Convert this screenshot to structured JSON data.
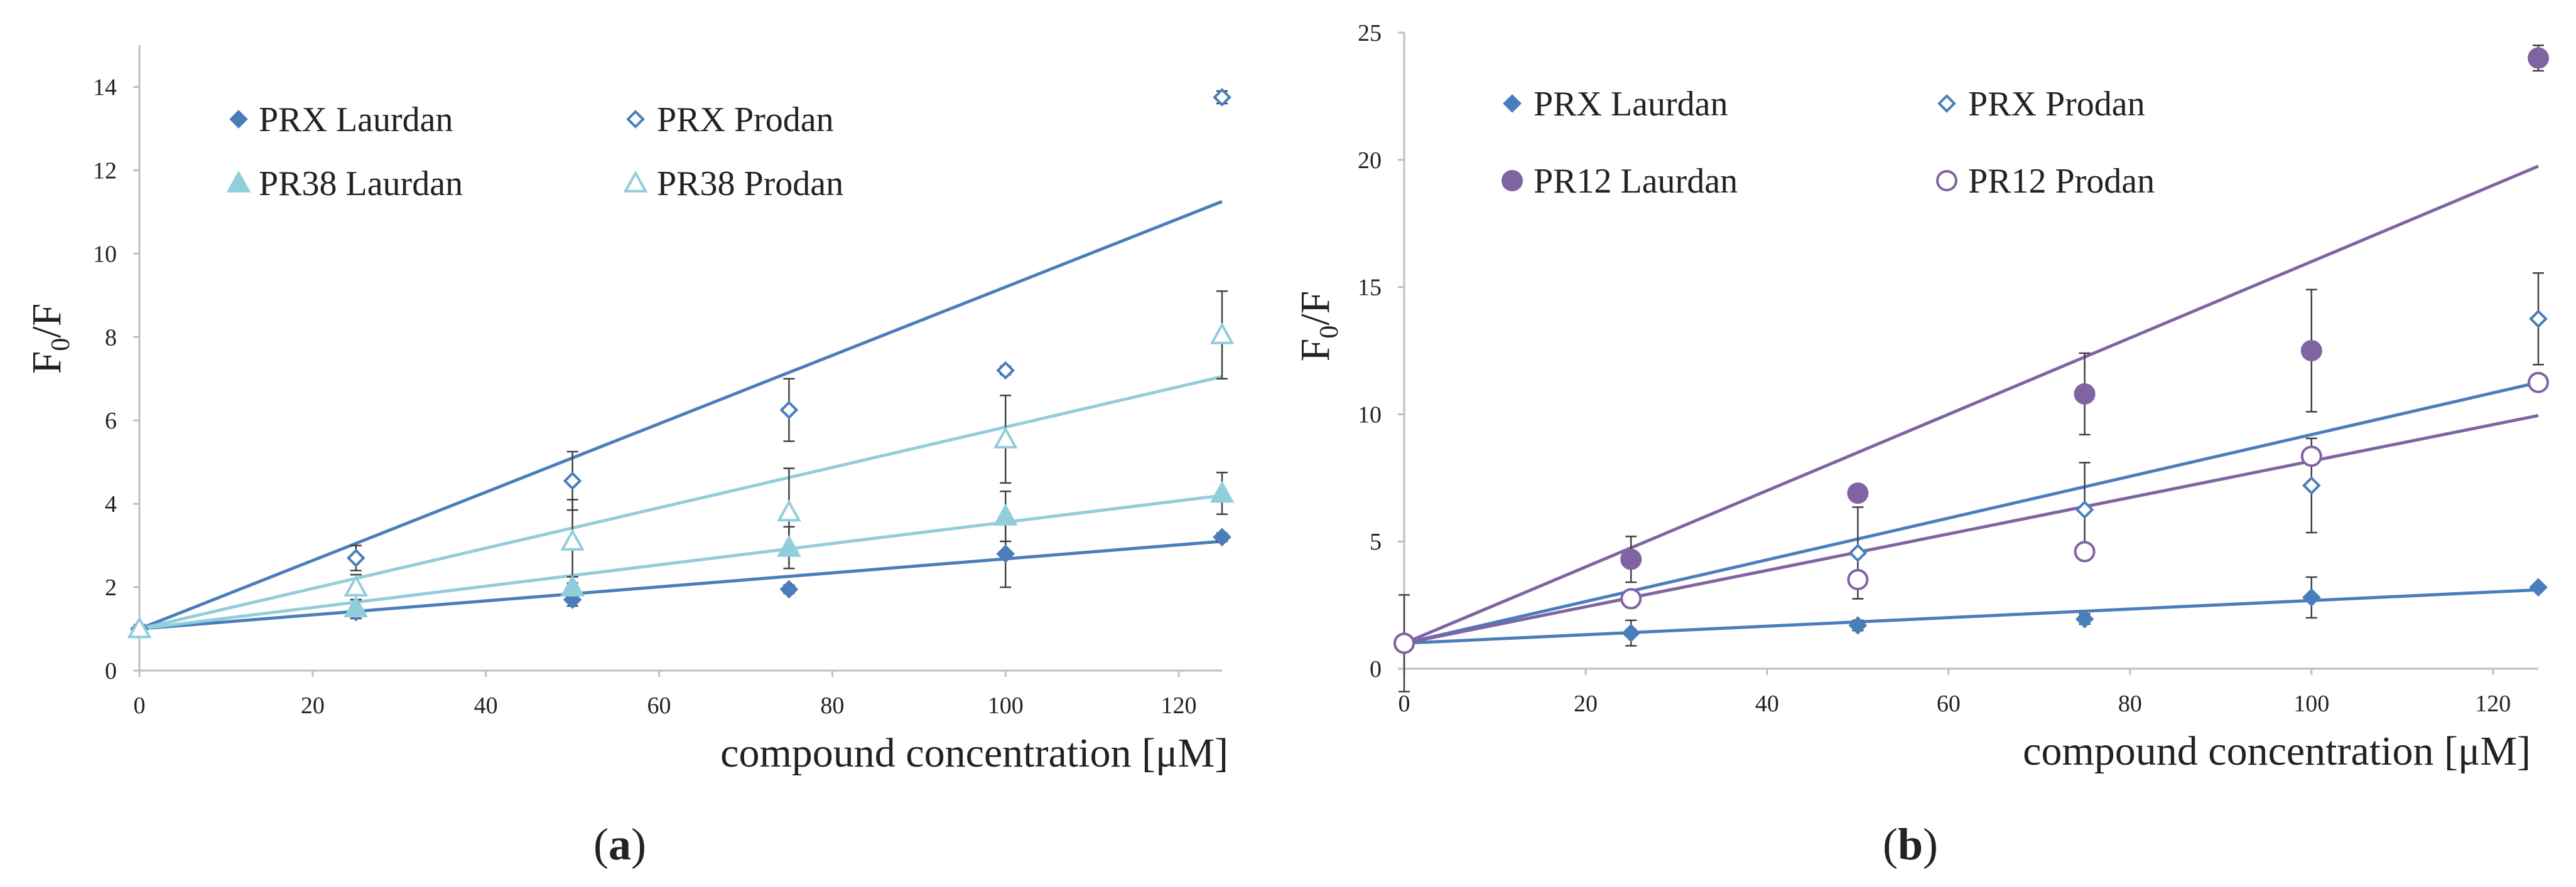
{
  "chart_data": [
    {
      "type": "scatter",
      "panel_label": "(a)",
      "xlabel": "compound concentration [μM]",
      "ylabel": "F0/F",
      "ylabel_main": "F",
      "ylabel_sub": "0",
      "ylabel_tail": "/F",
      "xlim": [
        0,
        125
      ],
      "ylim": [
        0,
        15
      ],
      "xticks": [
        0,
        20,
        40,
        60,
        80,
        100,
        120
      ],
      "yticks": [
        0,
        2,
        4,
        6,
        8,
        10,
        12,
        14
      ],
      "grid": false,
      "legend": "top-left",
      "series": [
        {
          "name": "PRX Laurdan",
          "color": "#4a7ebb",
          "marker": "diamond-filled",
          "x": [
            0,
            25,
            50,
            75,
            100,
            125
          ],
          "y": [
            1.0,
            1.4,
            1.7,
            1.95,
            2.8,
            3.2
          ],
          "yerr": [
            0.1,
            0.15,
            0.15,
            0.1,
            0.8,
            0.1
          ],
          "trendline": [
            [
              0,
              1.0
            ],
            [
              125,
              3.1
            ]
          ]
        },
        {
          "name": "PRX Prodan",
          "color": "#4a7ebb",
          "marker": "diamond-open",
          "x": [
            0,
            25,
            50,
            75,
            100,
            125
          ],
          "y": [
            1.0,
            2.7,
            4.55,
            6.25,
            7.2,
            13.75
          ],
          "yerr": [
            0.1,
            0.3,
            0.7,
            0.75,
            0.1,
            0.15
          ],
          "trendline": [
            [
              0,
              1.0
            ],
            [
              125,
              11.25
            ]
          ]
        },
        {
          "name": "PR38 Laurdan",
          "color": "#92cddc",
          "marker": "triangle-filled",
          "x": [
            0,
            25,
            50,
            75,
            100,
            125
          ],
          "y": [
            1.0,
            1.5,
            2.0,
            2.95,
            3.7,
            4.25
          ],
          "yerr": [
            0.1,
            0.2,
            0.25,
            0.5,
            0.6,
            0.5
          ],
          "trendline": [
            [
              0,
              1.0
            ],
            [
              125,
              4.2
            ]
          ]
        },
        {
          "name": "PR38 Prodan",
          "color": "#92cddc",
          "marker": "triangle-open",
          "x": [
            0,
            25,
            50,
            75,
            100,
            125
          ],
          "y": [
            1.0,
            2.0,
            3.1,
            3.8,
            5.55,
            8.05
          ],
          "yerr": [
            0.1,
            0.3,
            1.0,
            1.05,
            1.05,
            1.05
          ],
          "trendline": [
            [
              0,
              1.0
            ],
            [
              125,
              7.05
            ]
          ]
        }
      ]
    },
    {
      "type": "scatter",
      "panel_label": "(b)",
      "xlabel": "compound concentration [μM]",
      "ylabel": "F0/F",
      "ylabel_main": "F",
      "ylabel_sub": "0",
      "ylabel_tail": "/F",
      "xlim": [
        0,
        125
      ],
      "ylim": [
        0,
        25
      ],
      "xticks": [
        0,
        20,
        40,
        60,
        80,
        100,
        120
      ],
      "yticks": [
        0,
        5,
        10,
        15,
        20,
        25
      ],
      "grid": false,
      "legend": "top-left",
      "series": [
        {
          "name": "PRX Laurdan",
          "color": "#4a7ebb",
          "marker": "diamond-filled",
          "x": [
            0,
            25,
            50,
            75,
            100,
            125
          ],
          "y": [
            1.0,
            1.4,
            1.7,
            1.95,
            2.8,
            3.2
          ],
          "yerr": [
            0.2,
            0.5,
            0.2,
            0.2,
            0.8,
            0.1
          ],
          "trendline": [
            [
              0,
              1.0
            ],
            [
              125,
              3.1
            ]
          ]
        },
        {
          "name": "PRX Prodan",
          "color": "#4a7ebb",
          "marker": "diamond-open",
          "x": [
            0,
            25,
            50,
            75,
            100,
            125
          ],
          "y": [
            1.0,
            2.7,
            4.55,
            6.25,
            7.2,
            13.75
          ],
          "yerr": [
            0.1,
            0.3,
            1.8,
            1.85,
            1.85,
            1.8
          ],
          "trendline": [
            [
              0,
              1.0
            ],
            [
              125,
              11.25
            ]
          ]
        },
        {
          "name": "PR12 Laurdan",
          "color": "#8064a2",
          "marker": "circle-filled",
          "x": [
            0,
            25,
            50,
            75,
            100,
            125
          ],
          "y": [
            1.0,
            4.3,
            6.9,
            10.8,
            12.5,
            24.0
          ],
          "yerr": [
            1.9,
            0.9,
            0.3,
            1.6,
            2.4,
            0.5
          ],
          "trendline": [
            [
              0,
              1.0
            ],
            [
              125,
              19.75
            ]
          ]
        },
        {
          "name": "PR12 Prodan",
          "color": "#8064a2",
          "marker": "circle-open",
          "x": [
            0,
            25,
            50,
            75,
            100,
            125
          ],
          "y": [
            1.0,
            2.75,
            3.5,
            4.6,
            8.35,
            11.25
          ],
          "yerr": [
            0.1,
            0.2,
            0.2,
            0.2,
            0.3,
            0.2
          ],
          "trendline": [
            [
              0,
              1.0
            ],
            [
              125,
              9.95
            ]
          ]
        }
      ]
    }
  ]
}
